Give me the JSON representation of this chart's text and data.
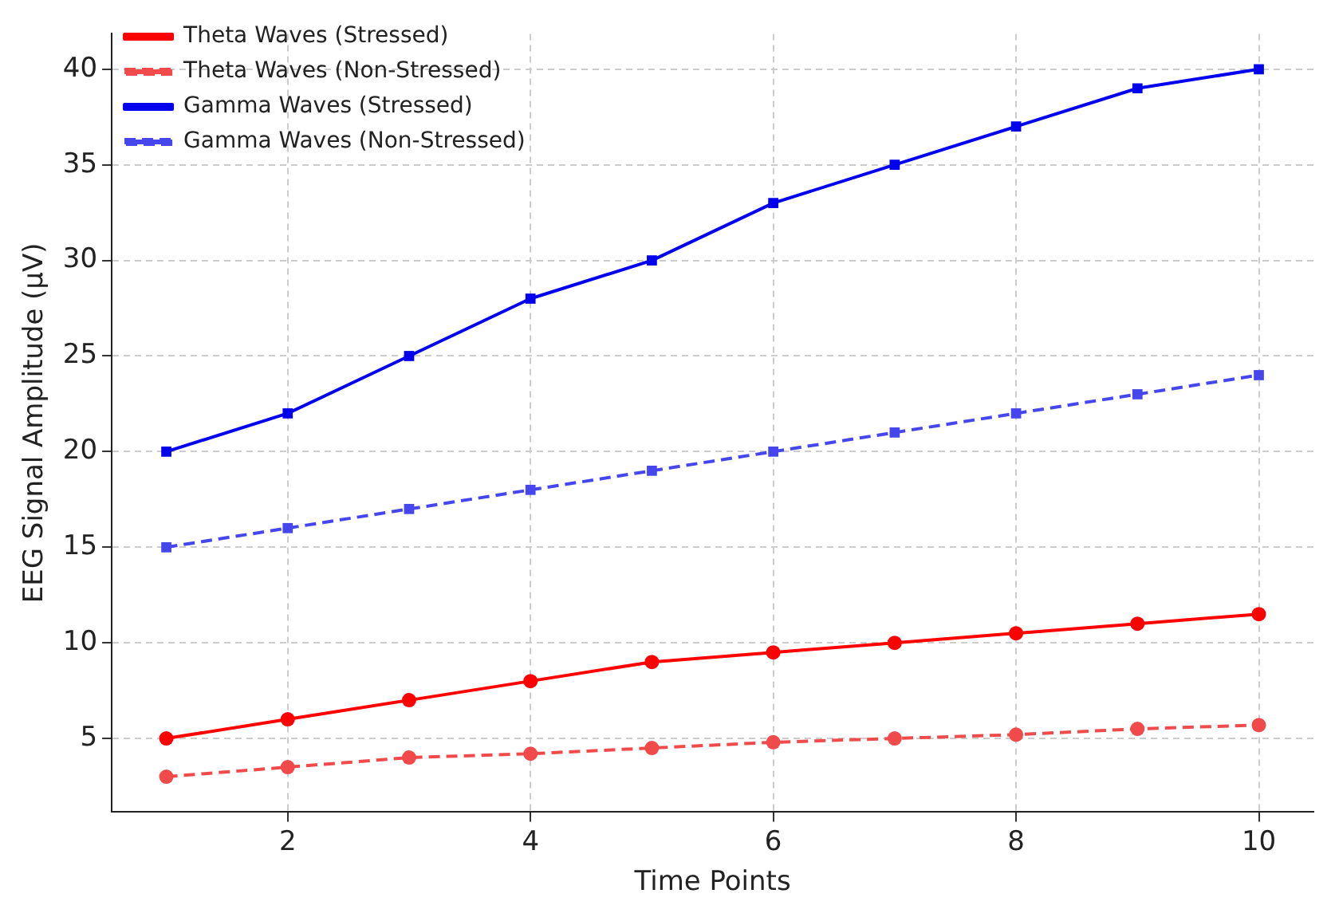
{
  "chart_data": {
    "type": "line",
    "xlabel": "Time Points",
    "ylabel": "EEG Signal Amplitude (µV)",
    "x": [
      1,
      2,
      3,
      4,
      5,
      6,
      7,
      8,
      9,
      10
    ],
    "xlim": [
      0.55,
      10.45
    ],
    "xticks": [
      2,
      4,
      6,
      8,
      10
    ],
    "ylim": [
      1.15,
      41.85
    ],
    "yticks": [
      5,
      10,
      15,
      20,
      25,
      30,
      35,
      40
    ],
    "grid": true,
    "legend": "top left",
    "series": [
      {
        "name": "Theta Waves (Stressed)",
        "color": "#ff0000",
        "marker": "circle",
        "line_style": "solid",
        "values": [
          5,
          6,
          7,
          8,
          9,
          9.5,
          10,
          10.5,
          11,
          11.5
        ]
      },
      {
        "name": "Theta Waves (Non-Stressed)",
        "color": "#f04a4a",
        "marker": "circle",
        "line_style": "dashed",
        "values": [
          3,
          3.5,
          4,
          4.2,
          4.5,
          4.8,
          5,
          5.2,
          5.5,
          5.7
        ]
      },
      {
        "name": "Gamma Waves (Stressed)",
        "color": "#0000ee",
        "marker": "square",
        "line_style": "solid",
        "values": [
          20,
          22,
          25,
          28,
          30,
          33,
          35,
          37,
          39,
          40
        ]
      },
      {
        "name": "Gamma Waves (Non-Stressed)",
        "color": "#4646ee",
        "marker": "square",
        "line_style": "dashed",
        "values": [
          15,
          16,
          17,
          18,
          19,
          20,
          21,
          22,
          23,
          24
        ]
      }
    ]
  }
}
